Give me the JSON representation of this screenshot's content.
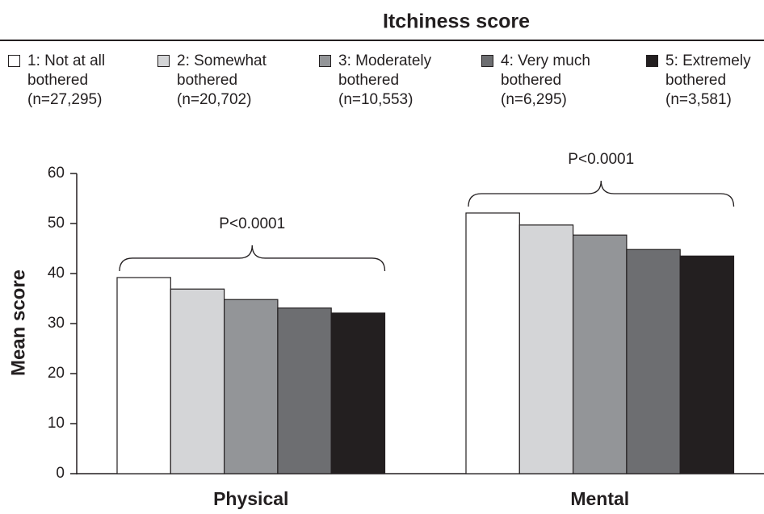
{
  "chart_data": {
    "type": "bar",
    "title": "Itchiness score",
    "ylabel": "Mean score",
    "categories": [
      "Physical",
      "Mental"
    ],
    "series": [
      {
        "name": "1: Not at all\nbothered\n(n=27,295)",
        "color": "#ffffff",
        "values": [
          39.2,
          52.1
        ]
      },
      {
        "name": "2: Somewhat\nbothered\n(n=20,702)",
        "color": "#d4d5d7",
        "values": [
          36.9,
          49.7
        ]
      },
      {
        "name": "3: Moderately\nbothered\n(n=10,553)",
        "color": "#939598",
        "values": [
          34.8,
          47.7
        ]
      },
      {
        "name": "4: Very much\nbothered\n(n=6,295)",
        "color": "#6d6e71",
        "values": [
          33.1,
          44.8
        ]
      },
      {
        "name": "5: Extremely\nbothered\n(n=3,581)",
        "color": "#231f20",
        "values": [
          32.1,
          43.5
        ]
      }
    ],
    "annotations": [
      "P<0.0001",
      "P<0.0001"
    ],
    "ylim": [
      0,
      60
    ],
    "yticks": [
      0,
      10,
      20,
      30,
      40,
      50,
      60
    ],
    "grid": false
  }
}
